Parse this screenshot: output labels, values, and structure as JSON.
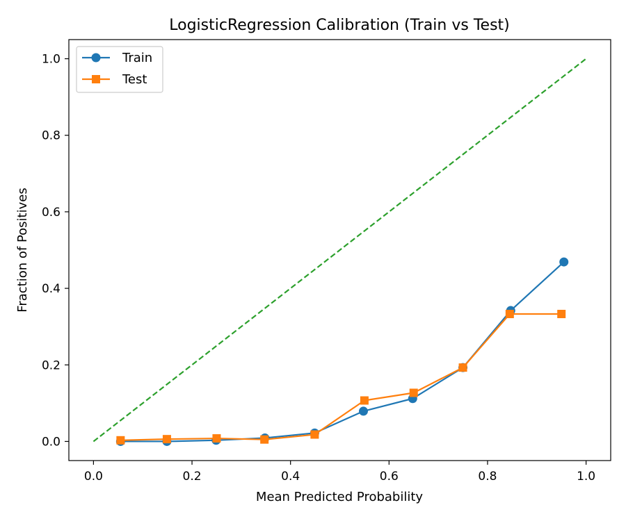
{
  "chart_data": {
    "type": "line",
    "title": "LogisticRegression Calibration (Train vs Test)",
    "xlabel": "Mean Predicted Probability",
    "ylabel": "Fraction of Positives",
    "xlim": [
      -0.05,
      1.05
    ],
    "ylim": [
      -0.05,
      1.05
    ],
    "xticks": [
      0.0,
      0.2,
      0.4,
      0.6,
      0.8,
      1.0
    ],
    "yticks": [
      0.0,
      0.2,
      0.4,
      0.6,
      0.8,
      1.0
    ],
    "xtick_labels": [
      "0.0",
      "0.2",
      "0.4",
      "0.6",
      "0.8",
      "1.0"
    ],
    "ytick_labels": [
      "0.0",
      "0.2",
      "0.4",
      "0.6",
      "0.8",
      "1.0"
    ],
    "grid": false,
    "legend_position": "upper-left",
    "series": [
      {
        "name": "Train",
        "marker": "circle",
        "color": "#1f77b4",
        "x": [
          0.055,
          0.149,
          0.249,
          0.348,
          0.449,
          0.548,
          0.648,
          0.75,
          0.847,
          0.955
        ],
        "y": [
          0.0,
          0.0,
          0.003,
          0.009,
          0.022,
          0.079,
          0.112,
          0.193,
          0.342,
          0.469
        ]
      },
      {
        "name": "Test",
        "marker": "square",
        "color": "#ff7f0e",
        "x": [
          0.055,
          0.149,
          0.25,
          0.347,
          0.449,
          0.55,
          0.65,
          0.75,
          0.845,
          0.95
        ],
        "y": [
          0.003,
          0.006,
          0.008,
          0.005,
          0.018,
          0.107,
          0.127,
          0.193,
          0.333,
          0.333
        ]
      }
    ],
    "reference_line": {
      "style": "dashed",
      "color": "#2ca02c",
      "x": [
        0.0,
        1.0
      ],
      "y": [
        0.0,
        1.0
      ]
    }
  }
}
